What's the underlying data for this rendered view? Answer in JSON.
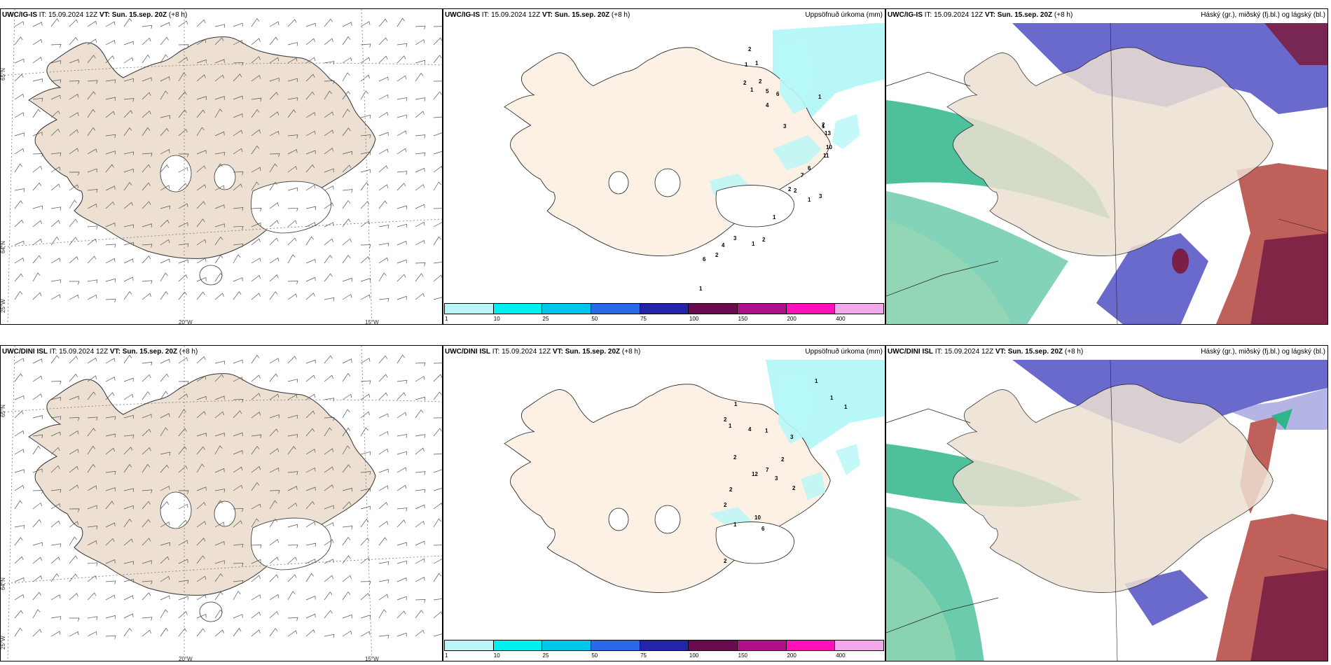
{
  "colors": {
    "land": "#ede0d2",
    "land_precip": "#fdf1e6",
    "ocean": "#ffffff",
    "precip_cyan": "#b7f7f7",
    "cloud_high": "#6a6acc",
    "cloud_mid": "#c0605a",
    "cloud_low": "#2fb58a",
    "cloud_maroon": "#7a1f45"
  },
  "rows": [
    {
      "model": "UWC/IG-IS",
      "it_label": "IT:",
      "it_value": "15.09.2024 12Z",
      "vt_label": "VT:",
      "vt_value": "Sun. 15.sep. 20Z",
      "offset": "(+8 h)",
      "precip_numbers": [
        "2",
        "1",
        "1",
        "2",
        "1",
        "2",
        "5",
        "6",
        "4",
        "3",
        "1",
        "1",
        "2",
        "13",
        "10",
        "11",
        "6",
        "7",
        "2",
        "2",
        "1",
        "3",
        "1",
        "2",
        "1",
        "3",
        "4",
        "2",
        "6",
        "1"
      ]
    },
    {
      "model": "UWC/DINI ISL",
      "it_label": "IT:",
      "it_value": "15.09.2024 12Z",
      "vt_label": "VT:",
      "vt_value": "Sun. 15.sep. 20Z",
      "offset": "(+8 h)",
      "precip_numbers": [
        "1",
        "1",
        "1",
        "1",
        "2",
        "1",
        "4",
        "1",
        "3",
        "2",
        "2",
        "12",
        "7",
        "3",
        "2",
        "2",
        "2",
        "10",
        "1",
        "6",
        "2"
      ]
    }
  ],
  "precip_title": "Uppsöfnuð úrkoma (mm)",
  "cloud_title": "Háský (gr.), miðský (fj.bl.) og lágský (bl.)",
  "colorbar": {
    "labels": [
      "1",
      "10",
      "25",
      "50",
      "75",
      "100",
      "150",
      "200",
      "400"
    ],
    "colors": [
      "#b9f6f7",
      "#00f0f0",
      "#00c6ea",
      "#2a6ae8",
      "#2424a8",
      "#6c0a50",
      "#b0108c",
      "#ff10b8",
      "#f4a8ec"
    ]
  },
  "grid_labels": {
    "lat_65": "65°N",
    "lat_64": "64°N",
    "lon_25": "25°W",
    "lon_20": "20°W",
    "lon_15": "15°W"
  }
}
